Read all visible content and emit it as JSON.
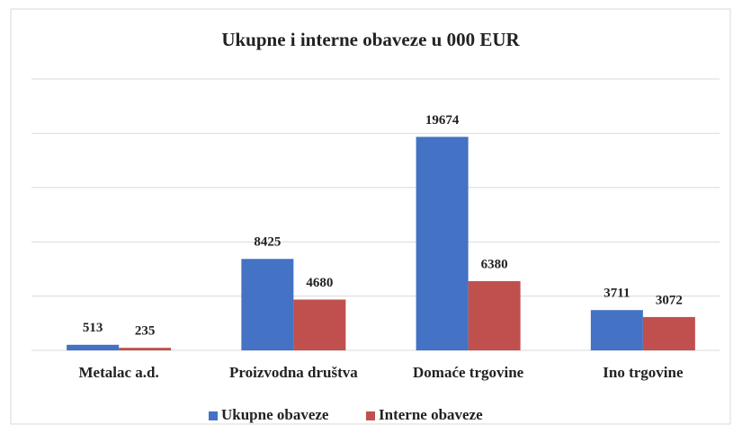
{
  "chart_data": {
    "type": "bar",
    "title": "Ukupne i interne obaveze u 000 EUR",
    "categories": [
      "Metalac a.d.",
      "Proizvodna društva",
      "Domaće trgovine",
      "Ino trgovine"
    ],
    "series": [
      {
        "name": "Ukupne obaveze",
        "color": "#4472c4",
        "values": [
          513,
          8425,
          19674,
          3711
        ]
      },
      {
        "name": "Interne obaveze",
        "color": "#c0504d",
        "values": [
          235,
          4680,
          6380,
          3072
        ]
      }
    ],
    "ylim": [
      0,
      25000
    ],
    "yticks": [
      0,
      5000,
      10000,
      15000,
      20000,
      25000
    ],
    "grid": true,
    "legend": "bottom"
  }
}
